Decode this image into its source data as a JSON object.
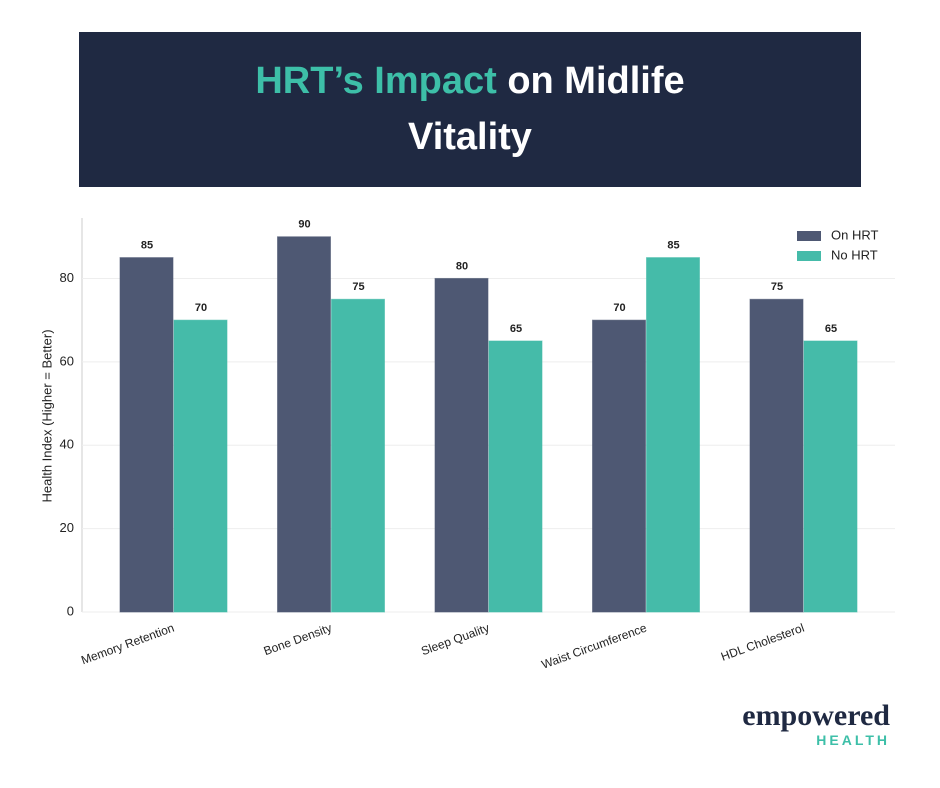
{
  "header": {
    "title_highlight": "HRT’s Impact",
    "title_rest": "on Midlife Vitality",
    "highlight_color": "#3dbfa8"
  },
  "chart_data": {
    "type": "bar",
    "categories": [
      "Memory Retention",
      "Bone Density",
      "Sleep Quality",
      "Waist Circumference",
      "HDL Cholesterol"
    ],
    "series": [
      {
        "name": "On HRT",
        "color": "#4e5873",
        "values": [
          85,
          90,
          80,
          70,
          75
        ]
      },
      {
        "name": "No HRT",
        "color": "#45bba9",
        "values": [
          70,
          75,
          65,
          85,
          65
        ]
      }
    ],
    "y_label": "Health Index (Higher = Better)",
    "ylim": [
      0,
      94.5
    ],
    "yticks": [
      0,
      20,
      40,
      60,
      80
    ],
    "grid": true,
    "legend": "upper-right"
  },
  "brand": {
    "name": "empowered",
    "tagline": "HEALTH"
  }
}
